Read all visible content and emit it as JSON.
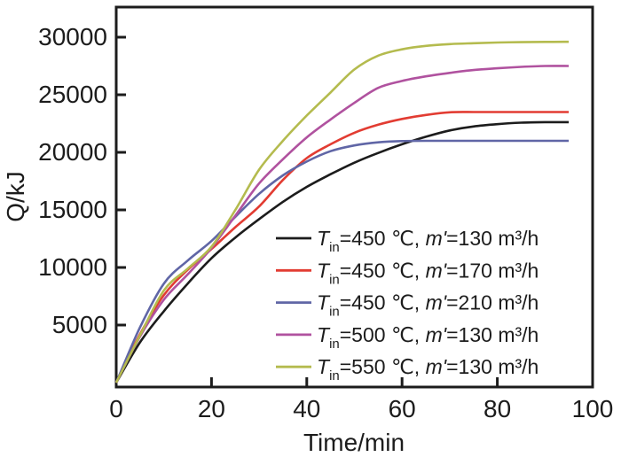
{
  "background": "#ffffff",
  "axis_color": "#1c1c1c",
  "chart_data": {
    "type": "line",
    "title": "",
    "xlabel": "Time/min",
    "ylabel": "Q/kJ",
    "xlim": [
      0,
      100
    ],
    "ylim": [
      -500,
      32600
    ],
    "grid": false,
    "legend_position": "inside lower right",
    "xticks": [
      "0",
      "20",
      "40",
      "60",
      "80",
      "100"
    ],
    "xtick_values": [
      0,
      20,
      40,
      60,
      80,
      100
    ],
    "yticks": [
      "5000",
      "10000",
      "15000",
      "20000",
      "25000",
      "30000"
    ],
    "ytick_values": [
      5000,
      10000,
      15000,
      20000,
      25000,
      30000
    ],
    "x": [
      0,
      5,
      10,
      15,
      20,
      25,
      30,
      35,
      40,
      45,
      50,
      55,
      60,
      65,
      70,
      75,
      80,
      85,
      90,
      95
    ],
    "series": [
      {
        "label_plain": "Tin=450 ℃, m'=130 m³/h",
        "label_parts": [
          {
            "t": "T",
            "s": "i"
          },
          {
            "t": "in",
            "s": "sub"
          },
          {
            "t": "=450 ℃, ",
            "s": "n"
          },
          {
            "t": "m'",
            "s": "i"
          },
          {
            "t": "=130 m³/h",
            "s": "n"
          }
        ],
        "color": "#1c1c1c",
        "values": [
          0,
          3500,
          6200,
          8600,
          10800,
          12600,
          14200,
          15700,
          17000,
          18100,
          19100,
          19950,
          20700,
          21350,
          21900,
          22250,
          22450,
          22580,
          22620,
          22620
        ]
      },
      {
        "label_plain": "Tin=450 ℃, m'=170 m³/h",
        "label_parts": [
          {
            "t": "T",
            "s": "i"
          },
          {
            "t": "in",
            "s": "sub"
          },
          {
            "t": "=450 ℃, ",
            "s": "n"
          },
          {
            "t": "m'",
            "s": "i"
          },
          {
            "t": "=170 m³/h",
            "s": "n"
          }
        ],
        "color": "#e23c32",
        "values": [
          0,
          4200,
          7600,
          9800,
          11600,
          13500,
          15300,
          17600,
          19500,
          20700,
          21700,
          22400,
          22900,
          23250,
          23480,
          23500,
          23500,
          23500,
          23500,
          23500
        ]
      },
      {
        "label_plain": "Tin=450 ℃, m'=210 m³/h",
        "label_parts": [
          {
            "t": "T",
            "s": "i"
          },
          {
            "t": "in",
            "s": "sub"
          },
          {
            "t": "=450 ℃, ",
            "s": "n"
          },
          {
            "t": "m'",
            "s": "i"
          },
          {
            "t": "=210 m³/h",
            "s": "n"
          }
        ],
        "color": "#6066a6",
        "values": [
          0,
          4800,
          8600,
          10600,
          12300,
          14400,
          16400,
          18000,
          19200,
          20100,
          20600,
          20870,
          20980,
          21000,
          21000,
          21000,
          21000,
          21000,
          21000,
          21000
        ]
      },
      {
        "label_plain": "Tin=500 ℃, m'=130 m³/h",
        "label_parts": [
          {
            "t": "T",
            "s": "i"
          },
          {
            "t": "in",
            "s": "sub"
          },
          {
            "t": "=500 ℃, ",
            "s": "n"
          },
          {
            "t": "m'",
            "s": "i"
          },
          {
            "t": "=130 m³/h",
            "s": "n"
          }
        ],
        "color": "#b0529f",
        "values": [
          0,
          4000,
          7200,
          9400,
          11700,
          14500,
          17300,
          19400,
          21300,
          22850,
          24300,
          25600,
          26200,
          26600,
          26900,
          27150,
          27300,
          27420,
          27500,
          27500
        ]
      },
      {
        "label_plain": "Tin=550 ℃, m'=130 m³/h",
        "label_parts": [
          {
            "t": "T",
            "s": "i"
          },
          {
            "t": "in",
            "s": "sub"
          },
          {
            "t": "=550 ℃, ",
            "s": "n"
          },
          {
            "t": "m'",
            "s": "i"
          },
          {
            "t": "=130 m³/h",
            "s": "n"
          }
        ],
        "color": "#b4bb4e",
        "values": [
          0,
          4100,
          8000,
          9900,
          11800,
          15000,
          18500,
          21000,
          23200,
          25200,
          27200,
          28400,
          28950,
          29250,
          29400,
          29480,
          29540,
          29570,
          29590,
          29600
        ]
      }
    ]
  }
}
